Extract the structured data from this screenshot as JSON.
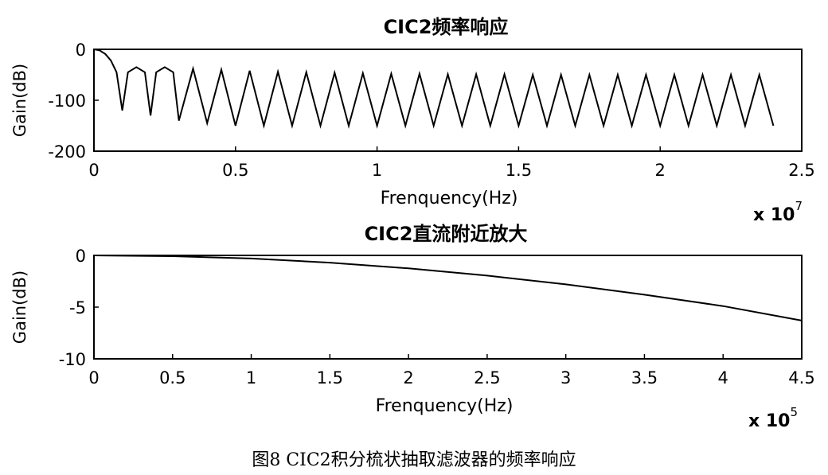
{
  "caption": "图8 CIC2积分梳状抽取滤波器的频率响应",
  "chart_data": [
    {
      "type": "line",
      "title": "CIC2频率响应",
      "xlabel": "Frenquency(Hz)",
      "ylabel": "Gain(dB)",
      "x_multiplier": "x 10",
      "x_exponent": "7",
      "xlim": [
        0,
        2.5
      ],
      "ylim": [
        -200,
        0
      ],
      "xticks": [
        0,
        0.5,
        1,
        1.5,
        2,
        2.5
      ],
      "xtick_labels": [
        "0",
        "0.5",
        "1",
        "1.5",
        "2",
        "2.5"
      ],
      "yticks": [
        0,
        -100,
        -200
      ],
      "ytick_labels": [
        "0",
        "-100",
        "-200"
      ],
      "grid": false,
      "series": [
        {
          "x": [
            0,
            0.02,
            0.04,
            0.06,
            0.08,
            0.1,
            0.12,
            0.15,
            0.18,
            0.2,
            0.22,
            0.25,
            0.28,
            0.3,
            0.35,
            0.4,
            0.45,
            0.5,
            0.55,
            0.6,
            0.65,
            0.7,
            0.75,
            0.8,
            0.85,
            0.9,
            0.95,
            1.0,
            1.05,
            1.1,
            1.15,
            1.2,
            1.25,
            1.3,
            1.35,
            1.4,
            1.45,
            1.5,
            1.55,
            1.6,
            1.65,
            1.7,
            1.75,
            1.8,
            1.85,
            1.9,
            1.95,
            2.0,
            2.05,
            2.1,
            2.15,
            2.2,
            2.25,
            2.3,
            2.35,
            2.4
          ],
          "y": [
            0,
            -2,
            -9,
            -22,
            -45,
            -120,
            -45,
            -35,
            -45,
            -130,
            -45,
            -35,
            -45,
            -140,
            -38,
            -145,
            -40,
            -150,
            -42,
            -150,
            -44,
            -150,
            -45,
            -150,
            -46,
            -150,
            -47,
            -150,
            -48,
            -150,
            -48,
            -150,
            -49,
            -150,
            -49,
            -150,
            -49,
            -150,
            -50,
            -150,
            -50,
            -150,
            -50,
            -150,
            -50,
            -150,
            -50,
            -150,
            -50,
            -150,
            -50,
            -150,
            -50,
            -150,
            -50,
            -150
          ]
        }
      ]
    },
    {
      "type": "line",
      "title": "CIC2直流附近放大",
      "xlabel": "Frenquency(Hz)",
      "ylabel": "Gain(dB)",
      "x_multiplier": "x 10",
      "x_exponent": "5",
      "xlim": [
        0,
        4.5
      ],
      "ylim": [
        -10,
        0
      ],
      "xticks": [
        0,
        0.5,
        1,
        1.5,
        2,
        2.5,
        3,
        3.5,
        4,
        4.5
      ],
      "xtick_labels": [
        "0",
        "0.5",
        "1",
        "1.5",
        "2",
        "2.5",
        "3",
        "3.5",
        "4",
        "4.5"
      ],
      "yticks": [
        0,
        -5,
        -10
      ],
      "ytick_labels": [
        "0",
        "-5",
        "-10"
      ],
      "grid": false,
      "series": [
        {
          "x": [
            0,
            0.5,
            1,
            1.5,
            2,
            2.5,
            3,
            3.5,
            4,
            4.5
          ],
          "y": [
            0,
            -0.08,
            -0.3,
            -0.7,
            -1.25,
            -1.95,
            -2.8,
            -3.8,
            -4.9,
            -6.3
          ]
        }
      ]
    }
  ]
}
